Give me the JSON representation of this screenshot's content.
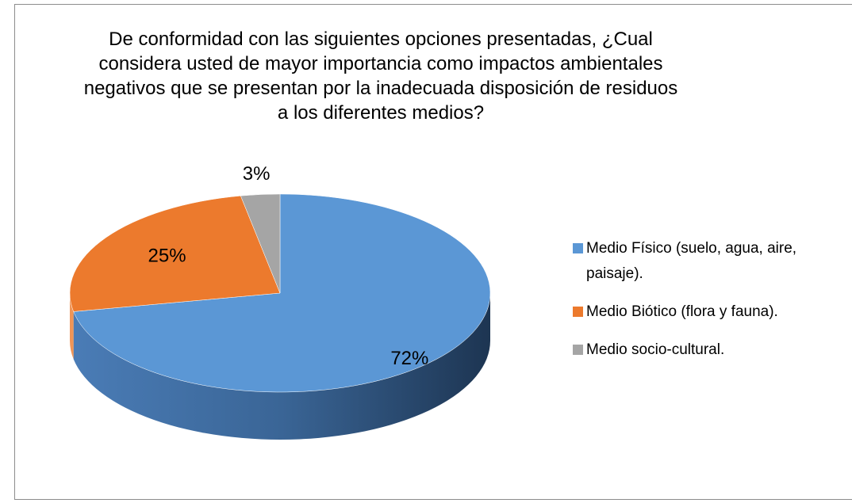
{
  "chart_data": {
    "type": "pie",
    "title": "De conformidad con las siguientes opciones presentadas, ¿Cual considera usted  de mayor  importancia como impactos ambientales negativos que se presentan por la inadecuada disposición de residuos a los diferentes medios?",
    "categories": [
      "Medio Físico (suelo, agua, aire, paisaje).",
      "Medio Biótico (flora y fauna).",
      "Medio socio-cultural."
    ],
    "values": [
      72,
      25,
      3
    ],
    "value_labels": [
      "72%",
      "25%",
      "3%"
    ],
    "colors": [
      "#5b97d5",
      "#ec7a2d",
      "#a5a5a5"
    ],
    "legend": "right"
  }
}
